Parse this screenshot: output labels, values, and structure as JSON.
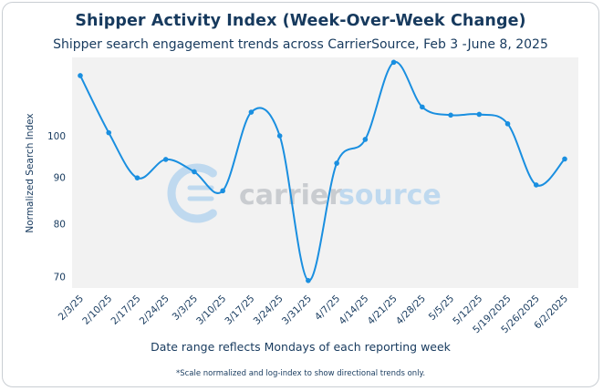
{
  "chart_data": {
    "type": "line",
    "title": "Shipper Activity Index (Week-Over-Week Change)",
    "subtitle": "Shipper search engagement trends across CarrierSource, Feb 3 -June 8, 2025",
    "xlabel": "Date range reflects Mondays of each reporting week",
    "ylabel": "Normalized Search Index",
    "footnote": "*Scale normalized and log-index to show directional trends only.",
    "categories": [
      "2/3/25",
      "2/10/25",
      "2/17/25",
      "2/24/25",
      "3/3/25",
      "3/10/25",
      "3/17/25",
      "3/24/25",
      "3/31/25",
      "4/7/25",
      "4/14/25",
      "4/21/25",
      "4/28/25",
      "5/5/25",
      "5/12/25",
      "5/19/2025",
      "5/26/2025",
      "6/2/2025"
    ],
    "series": [
      {
        "values": [
          116.5,
          100.8,
          89.9,
          94.2,
          91.3,
          87,
          106.2,
          100,
          69.3,
          93.3,
          99.1,
          120.5,
          107.6,
          105.4,
          105.6,
          103.1,
          88.3,
          94.3
        ]
      }
    ],
    "yticks": [
      70,
      80,
      90,
      100
    ],
    "y_scale": "log",
    "ylim": [
      68,
      122
    ],
    "grid": false,
    "colors": {
      "line": "#1a8fe0",
      "plot_bg": "#f2f2f2",
      "text": "#173a5e",
      "watermark": "#bfd9ef"
    },
    "watermark": {
      "text_carrier": "carrier",
      "text_source": "source",
      "icon": "carriersource-logo-icon"
    }
  }
}
